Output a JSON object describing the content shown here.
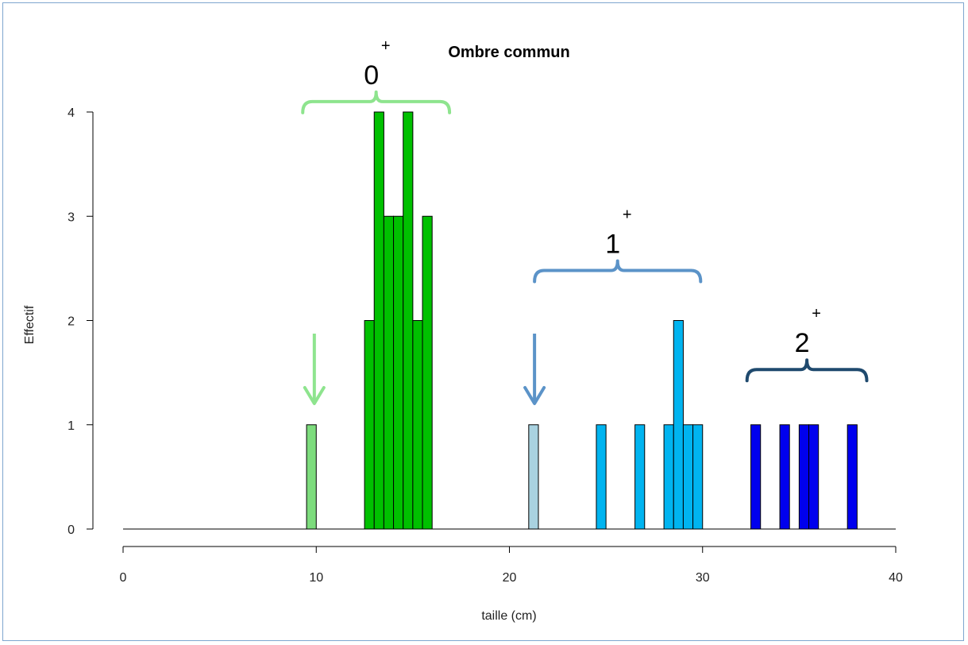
{
  "chart_data": {
    "type": "bar",
    "title": "Ombre commun",
    "xlabel": "taille (cm)",
    "ylabel": "Effectif",
    "xlim": [
      0,
      40
    ],
    "ylim": [
      0,
      4
    ],
    "xticks": [
      "0",
      "10",
      "20",
      "30",
      "40"
    ],
    "yticks": [
      "0",
      "1",
      "2",
      "3",
      "4"
    ],
    "bin_width": 0.5,
    "series": [
      {
        "color": "#7ddc7d",
        "bars": [
          {
            "x": 9.75,
            "value": 1
          }
        ]
      },
      {
        "color": "#00c000",
        "bars": [
          {
            "x": 12.75,
            "value": 2
          },
          {
            "x": 13.25,
            "value": 4
          },
          {
            "x": 13.75,
            "value": 3
          },
          {
            "x": 14.25,
            "value": 3
          },
          {
            "x": 14.75,
            "value": 4
          },
          {
            "x": 15.25,
            "value": 2
          },
          {
            "x": 15.75,
            "value": 3
          }
        ]
      },
      {
        "color": "#a9d2e0",
        "bars": [
          {
            "x": 21.25,
            "value": 1
          }
        ]
      },
      {
        "color": "#00b4f0",
        "bars": [
          {
            "x": 24.75,
            "value": 1
          },
          {
            "x": 26.75,
            "value": 1
          },
          {
            "x": 28.25,
            "value": 1
          },
          {
            "x": 28.75,
            "value": 2
          },
          {
            "x": 29.25,
            "value": 1
          },
          {
            "x": 29.75,
            "value": 1
          }
        ]
      },
      {
        "color": "#0000ee",
        "bars": [
          {
            "x": 32.75,
            "value": 1
          },
          {
            "x": 34.25,
            "value": 1
          },
          {
            "x": 35.25,
            "value": 1
          },
          {
            "x": 35.75,
            "value": 1
          },
          {
            "x": 37.75,
            "value": 1
          }
        ]
      }
    ],
    "annotations": [
      {
        "label": "0",
        "sup": "+",
        "color": "#8ee48e",
        "brace_from": 9.3,
        "brace_to": 16.9,
        "brace_y": 4.1,
        "arrow_x": 9.9
      },
      {
        "label": "1",
        "sup": "+",
        "color": "#5b93c8",
        "brace_from": 21.3,
        "brace_to": 29.9,
        "brace_y": 2.48,
        "arrow_x": 21.3
      },
      {
        "label": "2",
        "sup": "+",
        "color": "#1f4a6e",
        "brace_from": 32.3,
        "brace_to": 38.5,
        "brace_y": 1.53
      }
    ]
  }
}
